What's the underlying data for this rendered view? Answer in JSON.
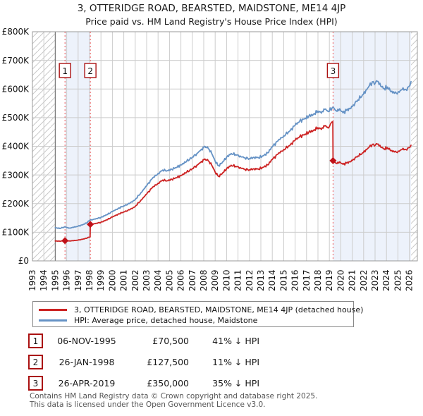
{
  "title": "3, OTTERIDGE ROAD, BEARSTED, MAIDSTONE, ME14 4JP",
  "subtitle": "Price paid vs. HM Land Registry's House Price Index (HPI)",
  "chart_data": {
    "type": "line",
    "title": "3, OTTERIDGE ROAD, BEARSTED, MAIDSTONE, ME14 4JP",
    "subtitle": "Price paid vs. HM Land Registry's House Price Index (HPI)",
    "xlim": [
      1993,
      2026.7
    ],
    "ylim": [
      0,
      800000
    ],
    "grid": true,
    "legend_position": "bottom",
    "x_axis": {
      "ticks": [
        1993,
        1994,
        1995,
        1996,
        1997,
        1998,
        1999,
        2000,
        2001,
        2002,
        2003,
        2004,
        2005,
        2006,
        2007,
        2008,
        2009,
        2010,
        2011,
        2012,
        2013,
        2014,
        2015,
        2016,
        2017,
        2018,
        2019,
        2020,
        2021,
        2022,
        2023,
        2024,
        2025,
        2026
      ]
    },
    "y_axis": {
      "tick_values": [
        0,
        100000,
        200000,
        300000,
        400000,
        500000,
        600000,
        700000,
        800000
      ],
      "tick_labels": [
        "£0",
        "£100K",
        "£200K",
        "£300K",
        "£400K",
        "£500K",
        "£600K",
        "£700K",
        "£800K"
      ]
    },
    "data_start_year": 1995,
    "shaded_ranges": [
      [
        1995.85,
        1998.07
      ],
      [
        2019.32,
        2026.15
      ]
    ],
    "hatched_ranges": [
      [
        1993,
        1995
      ],
      [
        2026.15,
        2026.7
      ]
    ],
    "colors": {
      "property_red": "#cc2222",
      "hpi_blue": "#6592c5",
      "event_dotted": "#ee5555",
      "marker_red": "#c01018",
      "box_border": "#aa1111",
      "shade": "#edf2fb",
      "grid": "#cccccc",
      "frame": "#999999",
      "hatch": "#c9c9c9",
      "start_line": "#777777"
    },
    "events": [
      {
        "num": "1",
        "year": 1995.85,
        "value": 70500
      },
      {
        "num": "2",
        "year": 1998.07,
        "value": 127500
      },
      {
        "num": "3",
        "year": 2019.32,
        "value": 350000
      }
    ],
    "series": [
      {
        "name": "3, OTTERIDGE ROAD, BEARSTED, MAIDSTONE, ME14 4JP (detached house)",
        "color": "#cc2222",
        "points": [
          [
            1995.0,
            69500
          ],
          [
            1995.4,
            68500
          ],
          [
            1995.85,
            70500
          ],
          [
            1996.2,
            69500
          ],
          [
            1996.6,
            70500
          ],
          [
            1997.0,
            72500
          ],
          [
            1997.4,
            75500
          ],
          [
            1997.8,
            80000
          ],
          [
            1998.05,
            84500
          ],
          [
            1998.07,
            127500
          ],
          [
            1998.5,
            130000
          ],
          [
            1999.0,
            135000
          ],
          [
            1999.5,
            143000
          ],
          [
            2000.0,
            153000
          ],
          [
            2000.5,
            163000
          ],
          [
            2001.0,
            171000
          ],
          [
            2001.5,
            178000
          ],
          [
            2002.0,
            190000
          ],
          [
            2002.5,
            212000
          ],
          [
            2003.0,
            233000
          ],
          [
            2003.5,
            256000
          ],
          [
            2004.0,
            271000
          ],
          [
            2004.4,
            282000
          ],
          [
            2004.8,
            280000
          ],
          [
            2005.2,
            285000
          ],
          [
            2005.6,
            290000
          ],
          [
            2006.0,
            298000
          ],
          [
            2006.5,
            309000
          ],
          [
            2007.0,
            322000
          ],
          [
            2007.4,
            334000
          ],
          [
            2007.8,
            347000
          ],
          [
            2008.1,
            356000
          ],
          [
            2008.4,
            349000
          ],
          [
            2008.7,
            334000
          ],
          [
            2009.0,
            310000
          ],
          [
            2009.3,
            295000
          ],
          [
            2009.6,
            304000
          ],
          [
            2010.0,
            322000
          ],
          [
            2010.4,
            334000
          ],
          [
            2010.8,
            330000
          ],
          [
            2011.2,
            326000
          ],
          [
            2011.6,
            320000
          ],
          [
            2012.0,
            318000
          ],
          [
            2012.4,
            322000
          ],
          [
            2012.8,
            320000
          ],
          [
            2013.2,
            327000
          ],
          [
            2013.6,
            335000
          ],
          [
            2014.0,
            354000
          ],
          [
            2014.5,
            373000
          ],
          [
            2015.0,
            389000
          ],
          [
            2015.5,
            402000
          ],
          [
            2016.0,
            421000
          ],
          [
            2016.4,
            434000
          ],
          [
            2016.8,
            440000
          ],
          [
            2017.2,
            449000
          ],
          [
            2017.6,
            456000
          ],
          [
            2018.0,
            465000
          ],
          [
            2018.3,
            459000
          ],
          [
            2018.6,
            471000
          ],
          [
            2018.9,
            464000
          ],
          [
            2019.1,
            478000
          ],
          [
            2019.3,
            486000
          ],
          [
            2019.32,
            350000
          ],
          [
            2019.6,
            341000
          ],
          [
            2019.9,
            346000
          ],
          [
            2020.2,
            337000
          ],
          [
            2020.5,
            342000
          ],
          [
            2020.8,
            346000
          ],
          [
            2021.1,
            355000
          ],
          [
            2021.5,
            366000
          ],
          [
            2021.9,
            377000
          ],
          [
            2022.2,
            388000
          ],
          [
            2022.5,
            398000
          ],
          [
            2022.75,
            407000
          ],
          [
            2022.95,
            401000
          ],
          [
            2023.2,
            408000
          ],
          [
            2023.5,
            397000
          ],
          [
            2023.8,
            391000
          ],
          [
            2024.1,
            395000
          ],
          [
            2024.4,
            384000
          ],
          [
            2024.7,
            380000
          ],
          [
            2024.95,
            378000
          ],
          [
            2025.2,
            386000
          ],
          [
            2025.45,
            393000
          ],
          [
            2025.7,
            389000
          ],
          [
            2025.95,
            395000
          ],
          [
            2026.15,
            404000
          ]
        ]
      },
      {
        "name": "HPI: Average price, detached house, Maidstone",
        "color": "#6592c5",
        "points": [
          [
            1995.0,
            116000
          ],
          [
            1995.4,
            113000
          ],
          [
            1995.85,
            119000
          ],
          [
            1996.2,
            114000
          ],
          [
            1996.6,
            117000
          ],
          [
            1997.0,
            121000
          ],
          [
            1997.4,
            126000
          ],
          [
            1997.8,
            134000
          ],
          [
            1998.07,
            143000
          ],
          [
            1998.5,
            146000
          ],
          [
            1999.0,
            152000
          ],
          [
            1999.5,
            161000
          ],
          [
            2000.0,
            172000
          ],
          [
            2000.5,
            183000
          ],
          [
            2001.0,
            192000
          ],
          [
            2001.5,
            200000
          ],
          [
            2002.0,
            214000
          ],
          [
            2002.5,
            238000
          ],
          [
            2003.0,
            262000
          ],
          [
            2003.5,
            288000
          ],
          [
            2004.0,
            305000
          ],
          [
            2004.4,
            317000
          ],
          [
            2004.8,
            315000
          ],
          [
            2005.2,
            320000
          ],
          [
            2005.6,
            326000
          ],
          [
            2006.0,
            335000
          ],
          [
            2006.5,
            347000
          ],
          [
            2007.0,
            362000
          ],
          [
            2007.4,
            375000
          ],
          [
            2007.8,
            390000
          ],
          [
            2008.1,
            400000
          ],
          [
            2008.4,
            392000
          ],
          [
            2008.7,
            375000
          ],
          [
            2009.0,
            348000
          ],
          [
            2009.3,
            332000
          ],
          [
            2009.6,
            342000
          ],
          [
            2010.0,
            362000
          ],
          [
            2010.4,
            375000
          ],
          [
            2010.8,
            371000
          ],
          [
            2011.2,
            366000
          ],
          [
            2011.6,
            360000
          ],
          [
            2012.0,
            357000
          ],
          [
            2012.4,
            362000
          ],
          [
            2012.8,
            360000
          ],
          [
            2013.2,
            367000
          ],
          [
            2013.6,
            377000
          ],
          [
            2014.0,
            398000
          ],
          [
            2014.5,
            419000
          ],
          [
            2015.0,
            437000
          ],
          [
            2015.5,
            452000
          ],
          [
            2016.0,
            473000
          ],
          [
            2016.4,
            488000
          ],
          [
            2016.8,
            495000
          ],
          [
            2017.2,
            505000
          ],
          [
            2017.6,
            512000
          ],
          [
            2018.0,
            523000
          ],
          [
            2018.3,
            516000
          ],
          [
            2018.6,
            529000
          ],
          [
            2018.9,
            521000
          ],
          [
            2019.32,
            537000
          ],
          [
            2019.6,
            524000
          ],
          [
            2019.9,
            531000
          ],
          [
            2020.2,
            517000
          ],
          [
            2020.5,
            526000
          ],
          [
            2020.8,
            532000
          ],
          [
            2021.1,
            545000
          ],
          [
            2021.5,
            562000
          ],
          [
            2021.9,
            580000
          ],
          [
            2022.2,
            596000
          ],
          [
            2022.5,
            612000
          ],
          [
            2022.75,
            625000
          ],
          [
            2022.95,
            616000
          ],
          [
            2023.2,
            627000
          ],
          [
            2023.5,
            610000
          ],
          [
            2023.8,
            601000
          ],
          [
            2024.1,
            607000
          ],
          [
            2024.4,
            590000
          ],
          [
            2024.7,
            585000
          ],
          [
            2024.95,
            583000
          ],
          [
            2025.2,
            594000
          ],
          [
            2025.45,
            604000
          ],
          [
            2025.7,
            598000
          ],
          [
            2025.95,
            608000
          ],
          [
            2026.15,
            626000
          ]
        ]
      }
    ]
  },
  "legend": {
    "items": [
      {
        "label": "3, OTTERIDGE ROAD, BEARSTED, MAIDSTONE, ME14 4JP (detached house)",
        "color": "#cc2222"
      },
      {
        "label": "HPI: Average price, detached house, Maidstone",
        "color": "#6592c5"
      }
    ]
  },
  "transactions": {
    "rows": [
      {
        "num": "1",
        "date": "06-NOV-1995",
        "price": "£70,500",
        "delta": "41% ↓ HPI"
      },
      {
        "num": "2",
        "date": "26-JAN-1998",
        "price": "£127,500",
        "delta": "11% ↓ HPI"
      },
      {
        "num": "3",
        "date": "26-APR-2019",
        "price": "£350,000",
        "delta": "35% ↓ HPI"
      }
    ]
  },
  "footer": {
    "line1": "Contains HM Land Registry data © Crown copyright and database right 2025.",
    "line2": "This data is licensed under the Open Government Licence v3.0."
  }
}
